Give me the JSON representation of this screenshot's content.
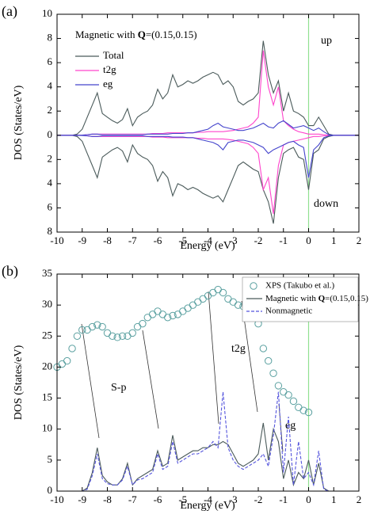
{
  "chart_data": [
    {
      "type": "line",
      "panel_label": "(a)",
      "annotation": [
        "Magnetic with ",
        "Q",
        "=(0.15,0.15)"
      ],
      "up_label": "up",
      "down_label": "down",
      "xlabel": "Energy (eV)",
      "ylabel": "DOS (States/eV)",
      "xlim": [
        -10,
        2
      ],
      "ylim": [
        -8,
        10
      ],
      "xticks": [
        -10,
        -9,
        -8,
        -7,
        -6,
        -5,
        -4,
        -3,
        -2,
        -1,
        0,
        1,
        2
      ],
      "yticks": [
        {
          "value": -8,
          "label": "8"
        },
        {
          "value": -6,
          "label": "6"
        },
        {
          "value": -4,
          "label": "4"
        },
        {
          "value": -2,
          "label": "2"
        },
        0,
        2,
        4,
        6,
        8,
        10
      ],
      "fermi_level": 0,
      "fermi_color": "#90e090",
      "x": [
        -10,
        -9.8,
        -9.6,
        -9.4,
        -9.2,
        -9,
        -8.8,
        -8.6,
        -8.4,
        -8.2,
        -8,
        -7.8,
        -7.6,
        -7.4,
        -7.2,
        -7,
        -6.8,
        -6.6,
        -6.4,
        -6.2,
        -6,
        -5.8,
        -5.6,
        -5.4,
        -5.2,
        -5,
        -4.8,
        -4.6,
        -4.4,
        -4.2,
        -4,
        -3.8,
        -3.6,
        -3.4,
        -3.2,
        -3,
        -2.8,
        -2.6,
        -2.4,
        -2.2,
        -2,
        -1.8,
        -1.6,
        -1.4,
        -1.2,
        -1,
        -0.8,
        -0.6,
        -0.4,
        -0.2,
        0,
        0.2,
        0.4,
        0.6,
        0.8,
        1,
        1.2,
        1.4,
        1.6,
        1.8,
        2
      ],
      "series": [
        {
          "name": "Total",
          "color": "#4a5a5a",
          "values": [
            0,
            0,
            0,
            0,
            0.1,
            0.5,
            1.5,
            2.5,
            3.5,
            1.8,
            1.5,
            1.2,
            1.0,
            1.3,
            2.2,
            0.8,
            1.5,
            1.8,
            2.0,
            2.5,
            3.8,
            3.0,
            3.5,
            5.0,
            4.0,
            4.2,
            4.5,
            4.3,
            4.5,
            4.8,
            5.0,
            5.2,
            5.0,
            4.2,
            4.5,
            4.0,
            2.8,
            2.5,
            2.8,
            3.0,
            3.5,
            7.8,
            5.0,
            3.5,
            4.5,
            2.0,
            3.5,
            2.0,
            1.8,
            1.5,
            0.8,
            0.8,
            1.5,
            0.8,
            0.1,
            0,
            0,
            0,
            0,
            0,
            0
          ],
          "down": [
            0,
            0,
            0,
            0,
            -0.1,
            -0.5,
            -1.5,
            -2.5,
            -3.5,
            -1.8,
            -1.5,
            -1.2,
            -1.0,
            -1.3,
            -2.2,
            -0.8,
            -1.5,
            -1.8,
            -2.0,
            -2.5,
            -3.8,
            -3.0,
            -3.5,
            -5.0,
            -4.0,
            -4.2,
            -4.5,
            -4.3,
            -4.5,
            -4.8,
            -5.0,
            -5.2,
            -5.0,
            -5.5,
            -4.5,
            -3.5,
            -2.5,
            -2.2,
            -2.5,
            -2.8,
            -3.0,
            -4.5,
            -5.5,
            -7.3,
            -3.5,
            -1.5,
            -1.2,
            -1.0,
            -1.8,
            -2.0,
            -4.5,
            -1.5,
            -1.2,
            -0.3,
            -0.1,
            0,
            0,
            0,
            0,
            0,
            0
          ]
        },
        {
          "name": "t2g",
          "color": "#ff44cc",
          "values": [
            0,
            0,
            0,
            0,
            0,
            0,
            0.05,
            0.1,
            0.1,
            0.1,
            0.1,
            0.1,
            0.1,
            0.1,
            0.1,
            0.1,
            0.1,
            0.1,
            0.1,
            0.15,
            0.15,
            0.15,
            0.2,
            0.2,
            0.2,
            0.2,
            0.2,
            0.2,
            0.25,
            0.25,
            0.3,
            0.3,
            0.3,
            0.3,
            0.35,
            0.4,
            0.5,
            0.6,
            0.7,
            1.0,
            1.5,
            7.0,
            4.0,
            2.5,
            4.0,
            1.2,
            0.8,
            0.5,
            0.3,
            0.2,
            0.1,
            0.1,
            0.1,
            0.05,
            0,
            0,
            0,
            0,
            0,
            0,
            0
          ],
          "down": [
            0,
            0,
            0,
            0,
            0,
            0,
            -0.05,
            -0.1,
            -0.1,
            -0.1,
            -0.1,
            -0.1,
            -0.1,
            -0.1,
            -0.1,
            -0.1,
            -0.1,
            -0.1,
            -0.1,
            -0.15,
            -0.15,
            -0.15,
            -0.2,
            -0.2,
            -0.2,
            -0.2,
            -0.2,
            -0.2,
            -0.25,
            -0.25,
            -0.3,
            -0.3,
            -0.3,
            -0.3,
            -0.35,
            -0.4,
            -0.5,
            -0.6,
            -0.7,
            -1.0,
            -1.5,
            -4.5,
            -3.5,
            -6.5,
            -2.5,
            -0.8,
            -0.6,
            -0.5,
            -0.4,
            -0.3,
            -0.2,
            -0.1,
            -0.1,
            -0.05,
            0,
            0,
            0,
            0,
            0,
            0,
            0
          ]
        },
        {
          "name": "eg",
          "color": "#4444cc",
          "values": [
            0,
            0,
            0,
            0,
            0,
            0.02,
            0.05,
            0.1,
            0.1,
            0.05,
            0.05,
            0.05,
            0.05,
            0.05,
            0.05,
            0.05,
            0.05,
            0.05,
            0.1,
            0.1,
            0.1,
            0.1,
            0.1,
            0.15,
            0.15,
            0.15,
            0.2,
            0.2,
            0.3,
            0.4,
            0.5,
            0.8,
            1.0,
            0.7,
            0.6,
            0.5,
            0.4,
            0.4,
            0.5,
            0.6,
            0.8,
            1.0,
            0.7,
            0.6,
            1.0,
            1.2,
            0.9,
            0.6,
            0.7,
            0.8,
            0.6,
            0.4,
            0.6,
            0.3,
            0.05,
            0,
            0,
            0,
            0,
            0,
            0
          ],
          "down": [
            0,
            0,
            0,
            0,
            0,
            -0.02,
            -0.05,
            -0.1,
            -0.1,
            -0.05,
            -0.05,
            -0.05,
            -0.05,
            -0.05,
            -0.05,
            -0.05,
            -0.05,
            -0.05,
            -0.1,
            -0.1,
            -0.1,
            -0.1,
            -0.1,
            -0.15,
            -0.15,
            -0.15,
            -0.2,
            -0.2,
            -0.3,
            -0.4,
            -0.5,
            -0.6,
            -0.8,
            -1.2,
            -0.6,
            -0.5,
            -0.4,
            -0.4,
            -0.5,
            -0.6,
            -0.8,
            -1.0,
            -1.5,
            -1.2,
            -1.0,
            -0.8,
            -0.6,
            -0.5,
            -0.8,
            -1.0,
            -3.5,
            -1.2,
            -0.8,
            -0.2,
            -0.05,
            0,
            0,
            0,
            0,
            0,
            0
          ]
        }
      ]
    },
    {
      "type": "line",
      "panel_label": "(b)",
      "xlabel": "Energy (eV)",
      "ylabel": "DOS (States/eV)",
      "xlim": [
        -10,
        2
      ],
      "ylim": [
        0,
        35
      ],
      "xticks": [
        -10,
        -9,
        -8,
        -7,
        -6,
        -5,
        -4,
        -3,
        -2,
        -1,
        0,
        1,
        2
      ],
      "yticks": [
        0,
        5,
        10,
        15,
        20,
        25,
        30,
        35
      ],
      "fermi_level": 0,
      "fermi_color": "#90e090",
      "annotations": [
        "S-p",
        "t2g",
        "eg"
      ],
      "x": [
        -10,
        -9.8,
        -9.6,
        -9.4,
        -9.2,
        -9,
        -8.8,
        -8.6,
        -8.4,
        -8.2,
        -8,
        -7.8,
        -7.6,
        -7.4,
        -7.2,
        -7,
        -6.8,
        -6.6,
        -6.4,
        -6.2,
        -6,
        -5.8,
        -5.6,
        -5.4,
        -5.2,
        -5,
        -4.8,
        -4.6,
        -4.4,
        -4.2,
        -4,
        -3.8,
        -3.6,
        -3.4,
        -3.2,
        -3,
        -2.8,
        -2.6,
        -2.4,
        -2.2,
        -2,
        -1.8,
        -1.6,
        -1.4,
        -1.2,
        -1,
        -0.8,
        -0.6,
        -0.4,
        -0.2,
        0,
        0.2,
        0.4,
        0.6,
        0.8,
        1,
        1.2,
        1.4,
        1.6,
        1.8,
        2
      ],
      "series": [
        {
          "name": "XPS (Takubo et al.)",
          "type": "scatter",
          "color": "#5aa0a0",
          "x": [
            -10,
            -9.8,
            -9.6,
            -9.4,
            -9.2,
            -9,
            -8.8,
            -8.6,
            -8.4,
            -8.2,
            -8,
            -7.8,
            -7.6,
            -7.4,
            -7.2,
            -7,
            -6.8,
            -6.6,
            -6.4,
            -6.2,
            -6,
            -5.8,
            -5.6,
            -5.4,
            -5.2,
            -5,
            -4.8,
            -4.6,
            -4.4,
            -4.2,
            -4,
            -3.8,
            -3.6,
            -3.4,
            -3.2,
            -3,
            -2.8,
            -2.6,
            -2.4,
            -2.2,
            -2,
            -1.8,
            -1.6,
            -1.4,
            -1.2,
            -1,
            -0.8,
            -0.6,
            -0.4,
            -0.2,
            0
          ],
          "values": [
            20,
            20.5,
            21,
            23,
            25,
            26,
            26,
            26.5,
            26.8,
            26.5,
            25.5,
            25,
            24.8,
            25,
            25,
            25.5,
            26.5,
            27,
            28,
            28.5,
            29,
            28.5,
            28,
            28.3,
            28.5,
            29,
            29.5,
            30,
            30.5,
            31,
            31.5,
            32,
            32.5,
            32,
            31,
            30.5,
            30,
            29.8,
            29.5,
            29,
            27,
            23,
            21,
            19,
            17,
            16,
            15.5,
            14.5,
            13.5,
            13,
            12.7
          ]
        },
        {
          "name_parts": [
            "Magnetic with ",
            "Q",
            "=(0.15,0.15)"
          ],
          "color": "#4a5a5a",
          "values": [
            0,
            0,
            0,
            0,
            0,
            0,
            0.5,
            3,
            7,
            2.5,
            1.5,
            1,
            1,
            2,
            4.5,
            1,
            2,
            2.5,
            3,
            3.5,
            6.5,
            4,
            4.5,
            9,
            5,
            5.5,
            6,
            6.5,
            6.5,
            7,
            7,
            7.5,
            7.5,
            8,
            7.5,
            6,
            4.5,
            4,
            4.5,
            5,
            6,
            11,
            5,
            10,
            8,
            2,
            5,
            1,
            3,
            2,
            5,
            1,
            4.5,
            0.5,
            0,
            0,
            0,
            0,
            0,
            0,
            0
          ]
        },
        {
          "name": "Nonmagnetic",
          "color": "#5555dd",
          "dash": true,
          "values": [
            0,
            0,
            0,
            0,
            0,
            0,
            0.3,
            2.5,
            6,
            2,
            1.2,
            1,
            1,
            1.8,
            4,
            1,
            1.8,
            2,
            2.5,
            3,
            6,
            3.5,
            4,
            8,
            4.5,
            5,
            5.5,
            6,
            6,
            6.5,
            7,
            8,
            7,
            16,
            7,
            5,
            4,
            3.5,
            4,
            4.5,
            5,
            6,
            4,
            9,
            16,
            3,
            12,
            1,
            8,
            2,
            3,
            1,
            6.5,
            0.3,
            0,
            0,
            0,
            0,
            0,
            0,
            0
          ]
        }
      ]
    }
  ]
}
